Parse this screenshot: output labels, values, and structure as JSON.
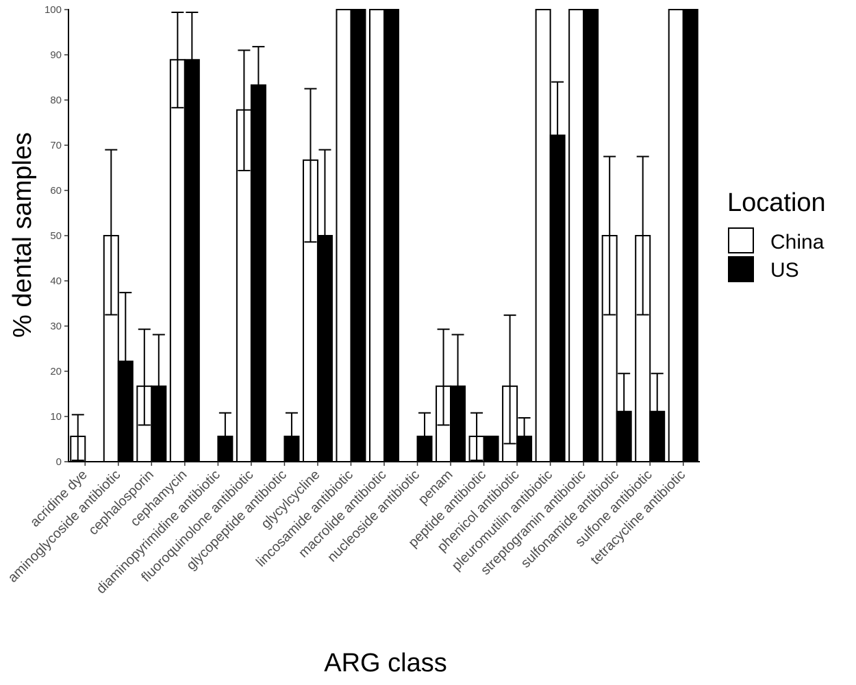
{
  "chart_data": {
    "type": "bar",
    "xlabel": "ARG class",
    "ylabel": "% dental samples",
    "ylim": [
      0,
      100
    ],
    "yticks": [
      "0",
      "10",
      "20",
      "30",
      "40",
      "50",
      "60",
      "70",
      "80",
      "90",
      "100"
    ],
    "grid": false,
    "legend": {
      "title": "Location",
      "placement": "right"
    },
    "categories": [
      "acridine dye",
      "aminoglycoside antibiotic",
      "cephalosporin",
      "cephamycin",
      "diaminopyrimidine antibiotic",
      "fluoroquinolone antibiotic",
      "glycopeptide antibiotic",
      "glycylcycline",
      "lincosamide antibiotic",
      "macrolide antibiotic",
      "nucleoside antibiotic",
      "penam",
      "peptide antibiotic",
      "phenicol antibiotic",
      "pleuromutilin antibiotic",
      "streptogramin antibiotic",
      "sulfonamide antibiotic",
      "sulfone antibiotic",
      "tetracycline antibiotic"
    ],
    "series": [
      {
        "name": "China",
        "color": "#ffffff",
        "values": [
          5.6,
          50.0,
          16.7,
          88.9,
          0,
          77.8,
          0,
          66.7,
          100,
          100,
          0,
          16.7,
          5.6,
          16.7,
          100,
          100,
          50.0,
          50.0,
          100
        ],
        "error_low": [
          0.3,
          32.5,
          8.1,
          78.3,
          null,
          64.4,
          null,
          48.6,
          null,
          null,
          null,
          8.1,
          0.3,
          4.0,
          null,
          null,
          32.5,
          32.5,
          null
        ],
        "error_high": [
          10.4,
          69.0,
          29.3,
          99.4,
          null,
          91.0,
          null,
          82.5,
          null,
          null,
          null,
          29.3,
          10.8,
          32.4,
          null,
          null,
          67.5,
          67.5,
          null
        ]
      },
      {
        "name": "US",
        "color": "#000000",
        "values": [
          0,
          22.2,
          16.7,
          88.9,
          5.6,
          83.3,
          5.6,
          50.0,
          100,
          100,
          5.6,
          16.7,
          5.6,
          5.6,
          72.2,
          100,
          11.1,
          11.1,
          100
        ],
        "error_low": [
          null,
          7.0,
          5.0,
          78.3,
          0.3,
          73.0,
          0.3,
          35.0,
          null,
          null,
          0.3,
          5.0,
          0.3,
          0.3,
          60.0,
          null,
          4.0,
          4.0,
          null
        ],
        "error_high": [
          null,
          37.4,
          28.1,
          99.4,
          10.8,
          91.8,
          10.8,
          69.0,
          null,
          null,
          10.8,
          28.1,
          5.6,
          9.7,
          84.0,
          null,
          19.5,
          19.5,
          null
        ]
      }
    ]
  }
}
